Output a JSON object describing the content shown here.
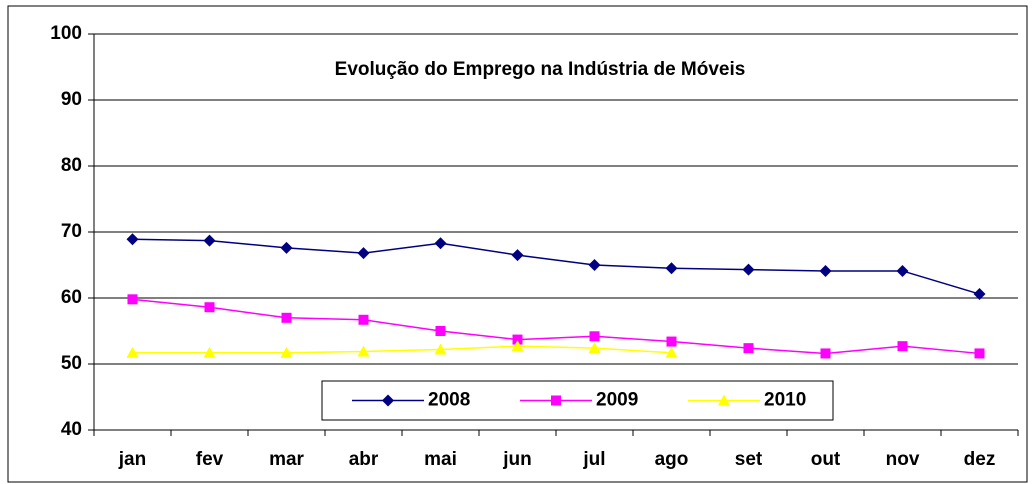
{
  "chart_data": {
    "type": "line",
    "title": "Evolução do Emprego na Indústria de Móveis",
    "categories": [
      "jan",
      "fev",
      "mar",
      "abr",
      "mai",
      "jun",
      "jul",
      "ago",
      "set",
      "out",
      "nov",
      "dez"
    ],
    "series": [
      {
        "name": "2008",
        "color": "#000080",
        "marker": "diamond",
        "values": [
          68.9,
          68.7,
          67.6,
          66.8,
          68.3,
          66.5,
          65.0,
          64.5,
          64.3,
          64.1,
          64.1,
          60.6
        ]
      },
      {
        "name": "2009",
        "color": "#ff00ff",
        "marker": "square",
        "values": [
          59.8,
          58.6,
          57.0,
          56.7,
          55.0,
          53.7,
          54.2,
          53.4,
          52.4,
          51.6,
          52.7,
          51.6
        ]
      },
      {
        "name": "2010",
        "color": "#ffff00",
        "marker": "triangle",
        "values": [
          51.7,
          51.7,
          51.7,
          51.9,
          52.2,
          52.7,
          52.4,
          51.7,
          null,
          null,
          null,
          null
        ]
      }
    ],
    "ylim": [
      40,
      100
    ],
    "yticks": [
      40,
      50,
      60,
      70,
      80,
      90,
      100
    ],
    "grid": true,
    "legend": "bottom"
  }
}
